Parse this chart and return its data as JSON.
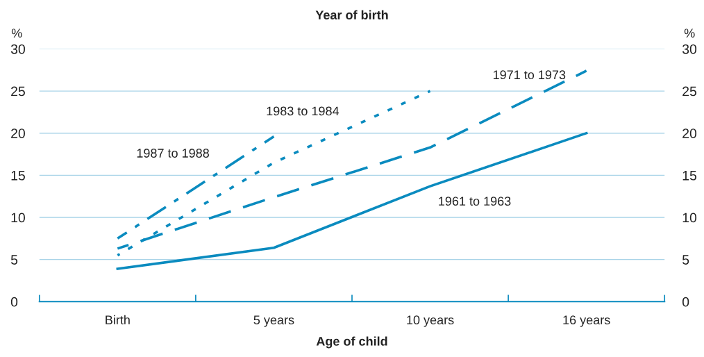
{
  "chart_data": {
    "type": "line",
    "title": "Year of birth",
    "xlabel": "Age of child",
    "ylabel": "%",
    "y2label": "%",
    "categories": [
      "Birth",
      "5 years",
      "10 years",
      "16 years"
    ],
    "series": [
      {
        "name": "1961 to 1963",
        "color": "#0a8bbf",
        "line_style": "solid",
        "values": [
          3.9,
          6.4,
          13.7,
          20
        ]
      },
      {
        "name": "1971 to 1973",
        "color": "#0a8bbf",
        "line_style": "dashed",
        "values": [
          6.3,
          12.4,
          18.3,
          27.4
        ]
      },
      {
        "name": "1983 to 1984",
        "color": "#0a8bbf",
        "line_style": "dotted",
        "values": [
          5.5,
          16.5,
          25,
          null
        ]
      },
      {
        "name": "1987 to 1988",
        "color": "#0a8bbf",
        "line_style": "dashdot",
        "values": [
          7.5,
          19.6,
          null,
          null
        ]
      }
    ],
    "ylim": [
      0,
      30
    ],
    "yticks": [
      0,
      5,
      10,
      15,
      20,
      25,
      30
    ],
    "y2lim": [
      0,
      30
    ],
    "y2ticks": [
      0,
      5,
      10,
      15,
      20,
      25,
      30
    ],
    "grid": "y",
    "legend": false,
    "marker": "none"
  }
}
